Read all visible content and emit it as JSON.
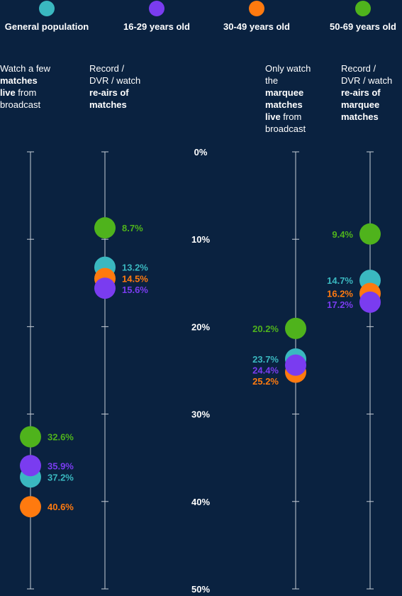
{
  "chart_data": {
    "type": "scatter",
    "ylim": [
      0,
      50
    ],
    "y_ticks": [
      "0%",
      "10%",
      "20%",
      "30%",
      "40%",
      "50%"
    ],
    "y_tick_values": [
      0,
      10,
      20,
      30,
      40,
      50
    ],
    "series": [
      {
        "name": "General population",
        "color": "#3ab8c0"
      },
      {
        "name": "16-29 years old",
        "color": "#7a3cf0"
      },
      {
        "name": "30-49 years old",
        "color": "#ff7a0f"
      },
      {
        "name": "50-69 years old",
        "color": "#4fb31c"
      }
    ],
    "categories": [
      {
        "title_lines": [
          [
            {
              "t": "Watch a few",
              "b": false
            }
          ],
          [
            {
              "t": "matches",
              "b": true
            }
          ],
          [
            {
              "t": "live",
              "b": true
            },
            {
              "t": " from",
              "b": false
            }
          ],
          [
            {
              "t": "broadcast",
              "b": false
            }
          ]
        ],
        "points": [
          {
            "series": "50-69 years old",
            "value": 32.6,
            "label": "32.6%"
          },
          {
            "series": "16-29 years old",
            "value": 35.9,
            "label": "35.9%"
          },
          {
            "series": "General population",
            "value": 37.2,
            "label": "37.2%"
          },
          {
            "series": "30-49 years old",
            "value": 40.6,
            "label": "40.6%"
          }
        ]
      },
      {
        "title_lines": [
          [
            {
              "t": "Record /",
              "b": false
            }
          ],
          [
            {
              "t": "DVR / watch",
              "b": false
            }
          ],
          [
            {
              "t": "re-airs of",
              "b": true
            }
          ],
          [
            {
              "t": "matches",
              "b": true
            }
          ]
        ],
        "points": [
          {
            "series": "50-69 years old",
            "value": 8.7,
            "label": "8.7%"
          },
          {
            "series": "General population",
            "value": 13.2,
            "label": "13.2%"
          },
          {
            "series": "30-49 years old",
            "value": 14.5,
            "label": "14.5%"
          },
          {
            "series": "16-29 years old",
            "value": 15.6,
            "label": "15.6%"
          }
        ]
      },
      {
        "title_lines": [
          [
            {
              "t": "Only watch",
              "b": false
            }
          ],
          [
            {
              "t": "the",
              "b": false
            }
          ],
          [
            {
              "t": "marquee",
              "b": true
            }
          ],
          [
            {
              "t": "matches",
              "b": true
            }
          ],
          [
            {
              "t": "live",
              "b": true
            },
            {
              "t": " from",
              "b": false
            }
          ],
          [
            {
              "t": "broadcast",
              "b": false
            }
          ]
        ],
        "points": [
          {
            "series": "50-69 years old",
            "value": 20.2,
            "label": "20.2%"
          },
          {
            "series": "General population",
            "value": 23.7,
            "label": "23.7%"
          },
          {
            "series": "16-29 years old",
            "value": 24.4,
            "label": "24.4%"
          },
          {
            "series": "30-49 years old",
            "value": 25.2,
            "label": "25.2%"
          }
        ]
      },
      {
        "title_lines": [
          [
            {
              "t": "Record /",
              "b": false
            }
          ],
          [
            {
              "t": "DVR / watch",
              "b": false
            }
          ],
          [
            {
              "t": "re-airs of",
              "b": true
            }
          ],
          [
            {
              "t": "marquee",
              "b": true
            }
          ],
          [
            {
              "t": "matches",
              "b": true
            }
          ]
        ],
        "points": [
          {
            "series": "50-69 years old",
            "value": 9.4,
            "label": "9.4%"
          },
          {
            "series": "General population",
            "value": 14.7,
            "label": "14.7%"
          },
          {
            "series": "30-49 years old",
            "value": 16.2,
            "label": "16.2%"
          },
          {
            "series": "16-29 years old",
            "value": 17.2,
            "label": "17.2%"
          }
        ]
      }
    ]
  }
}
